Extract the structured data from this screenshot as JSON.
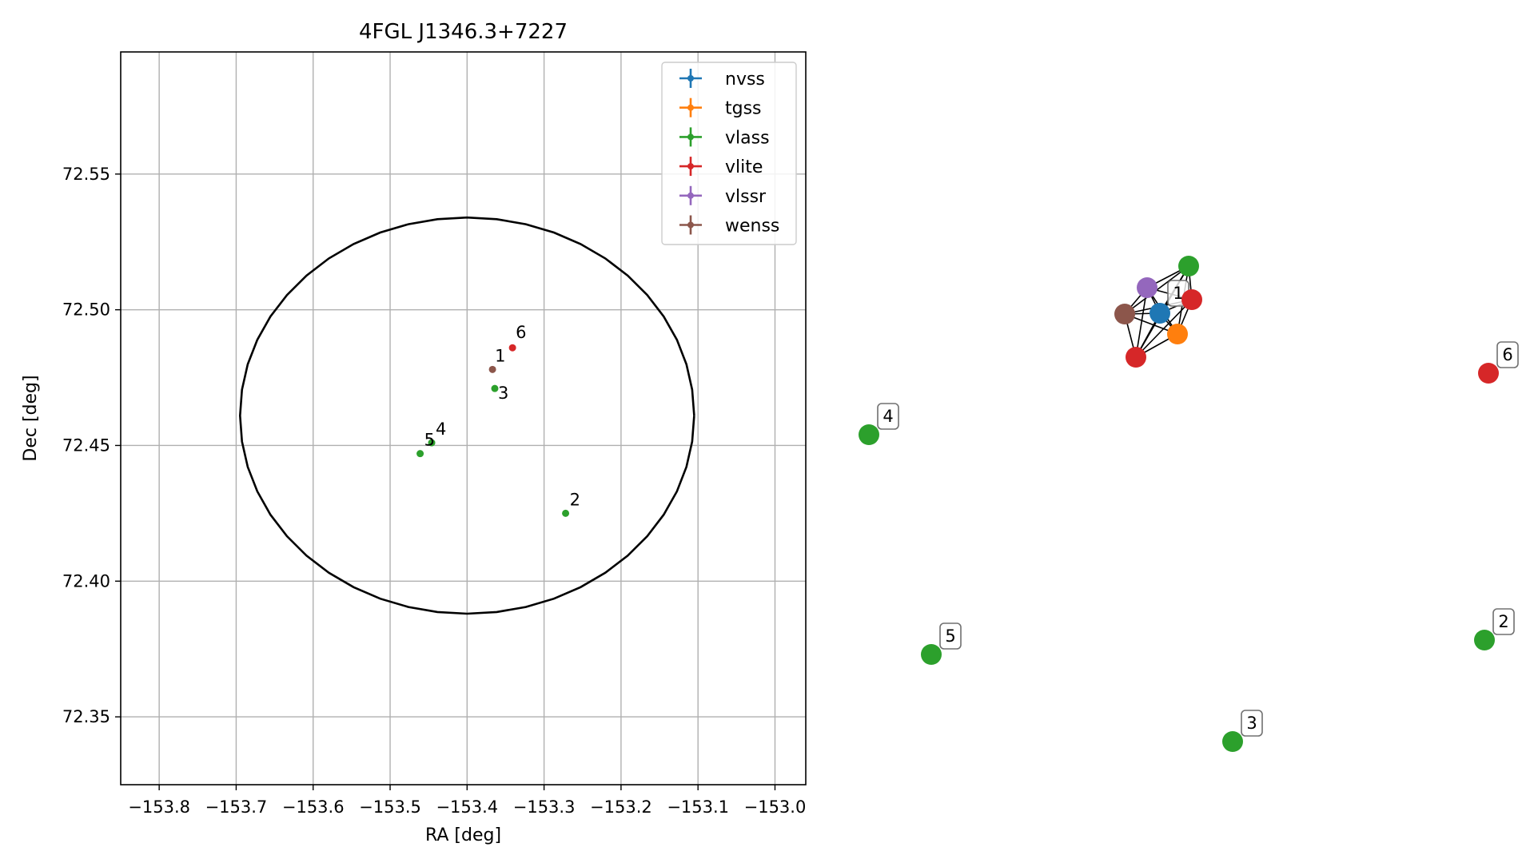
{
  "chart_data": [
    {
      "type": "scatter",
      "title": "4FGL J1346.3+7227",
      "xlabel": "RA [deg]",
      "ylabel": "Dec [deg]",
      "xlim": [
        -153.85,
        -152.96
      ],
      "ylim": [
        72.325,
        72.595
      ],
      "xticks": [
        -153.8,
        -153.7,
        -153.6,
        -153.5,
        -153.4,
        -153.3,
        -153.2,
        -153.1,
        -153.0
      ],
      "xtick_labels": [
        "−153.8",
        "−153.7",
        "−153.6",
        "−153.5",
        "−153.4",
        "−153.3",
        "−153.2",
        "−153.1",
        "−153.0"
      ],
      "yticks": [
        72.35,
        72.4,
        72.45,
        72.5,
        72.55
      ],
      "ytick_labels": [
        "72.35",
        "72.40",
        "72.45",
        "72.50",
        "72.55"
      ],
      "grid": true,
      "legend_position": "top-right",
      "ellipse": {
        "center_ra": -153.4,
        "center_dec": 72.461,
        "semi_ra": 0.295,
        "semi_dec": 0.073,
        "color": "#000000"
      },
      "series": [
        {
          "name": "nvss",
          "color": "#1f77b4",
          "points": []
        },
        {
          "name": "tgss",
          "color": "#ff7f0e",
          "points": []
        },
        {
          "name": "vlass",
          "color": "#2ca02c",
          "points": [
            {
              "ra": -153.272,
              "dec": 72.425,
              "label": "2"
            },
            {
              "ra": -153.364,
              "dec": 72.471,
              "label": "3"
            },
            {
              "ra": -153.446,
              "dec": 72.451,
              "label": "4"
            },
            {
              "ra": -153.461,
              "dec": 72.447,
              "label": "5"
            }
          ]
        },
        {
          "name": "vlite",
          "color": "#d62728",
          "points": [
            {
              "ra": -153.341,
              "dec": 72.486,
              "label": "6"
            }
          ]
        },
        {
          "name": "vlssr",
          "color": "#9467bd",
          "points": []
        },
        {
          "name": "wenss",
          "color": "#8c564b",
          "points": [
            {
              "ra": -153.367,
              "dec": 72.478,
              "label": "1"
            }
          ]
        }
      ]
    },
    {
      "type": "network",
      "nodes": [
        {
          "id": "n-nvss",
          "color": "#1f77b4"
        },
        {
          "id": "n-tgss",
          "color": "#ff7f0e"
        },
        {
          "id": "n-vlass",
          "color": "#2ca02c"
        },
        {
          "id": "n-vlite",
          "color": "#d62728"
        },
        {
          "id": "n-vlite2",
          "color": "#d62728"
        },
        {
          "id": "n-vlssr",
          "color": "#9467bd"
        },
        {
          "id": "n-wenss",
          "color": "#8c564b"
        },
        {
          "id": "n2",
          "color": "#2ca02c",
          "label": "2"
        },
        {
          "id": "n3",
          "color": "#2ca02c",
          "label": "3"
        },
        {
          "id": "n4",
          "color": "#2ca02c",
          "label": "4"
        },
        {
          "id": "n5",
          "color": "#2ca02c",
          "label": "5"
        },
        {
          "id": "n6",
          "color": "#d62728",
          "label": "6"
        }
      ],
      "cluster_label": "1"
    }
  ]
}
